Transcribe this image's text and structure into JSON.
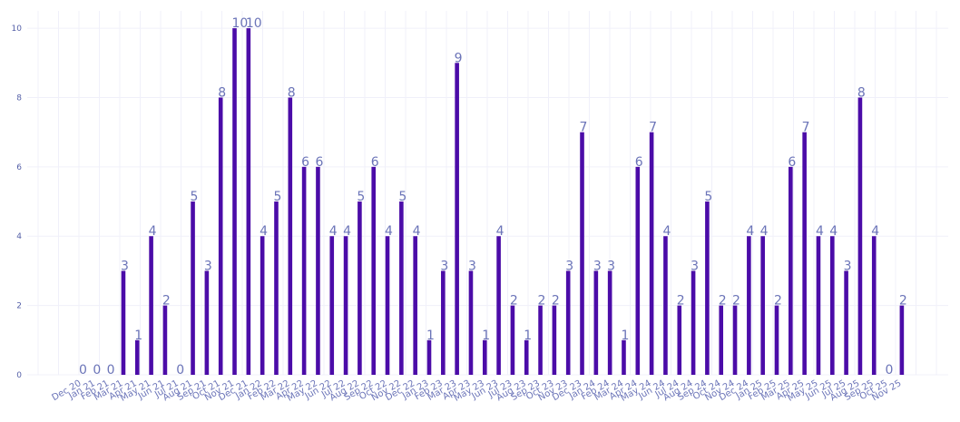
{
  "chart_data": {
    "type": "bar",
    "title": "",
    "xlabel": "",
    "ylabel": "",
    "ylim": [
      0,
      10.5
    ],
    "yticks": [
      0,
      2,
      4,
      6,
      8,
      10
    ],
    "grid": true,
    "bar_color": "#4b0ca8",
    "categories": [
      "Dec 20",
      "Jan 21",
      "Feb 21",
      "Mar 21",
      "Apr 21",
      "May 21",
      "Jun 21",
      "Jul 21",
      "Aug 21",
      "Sep 21",
      "Oct 21",
      "Nov 21",
      "Dec 21",
      "Jan 22",
      "Feb 22",
      "Mar 22",
      "Apr 22",
      "May 22",
      "Jun 22",
      "Jul 22",
      "Aug 22",
      "Sep 22",
      "Oct 22",
      "Nov 22",
      "Dec 22",
      "Jan 23",
      "Feb 23",
      "Mar 23",
      "Apr 23",
      "May 23",
      "Jun 23",
      "Jul 23",
      "Aug 23",
      "Sep 23",
      "Oct 23",
      "Nov 23",
      "Dec 23",
      "Jan 24",
      "Feb 24",
      "Mar 24",
      "Apr 24",
      "May 24",
      "Jun 24",
      "Jul 24",
      "Aug 24",
      "Sep 24",
      "Oct 24",
      "Nov 24",
      "Dec 24",
      "Jan 25",
      "Feb 25",
      "Mar 25",
      "Apr 25",
      "May 25",
      "Jun 25",
      "Jul 25",
      "Aug 25",
      "Sep 25",
      "Oct 25",
      "Nov 25"
    ],
    "values": [
      0,
      0,
      0,
      3,
      1,
      4,
      2,
      0,
      5,
      3,
      8,
      10,
      10,
      4,
      5,
      8,
      6,
      6,
      4,
      4,
      5,
      6,
      4,
      5,
      4,
      1,
      3,
      9,
      3,
      1,
      4,
      2,
      1,
      2,
      2,
      3,
      7,
      3,
      3,
      1,
      6,
      7,
      4,
      2,
      3,
      5,
      2,
      2,
      4,
      4,
      2,
      6,
      7,
      4,
      4,
      3,
      8,
      4,
      0,
      2
    ]
  }
}
